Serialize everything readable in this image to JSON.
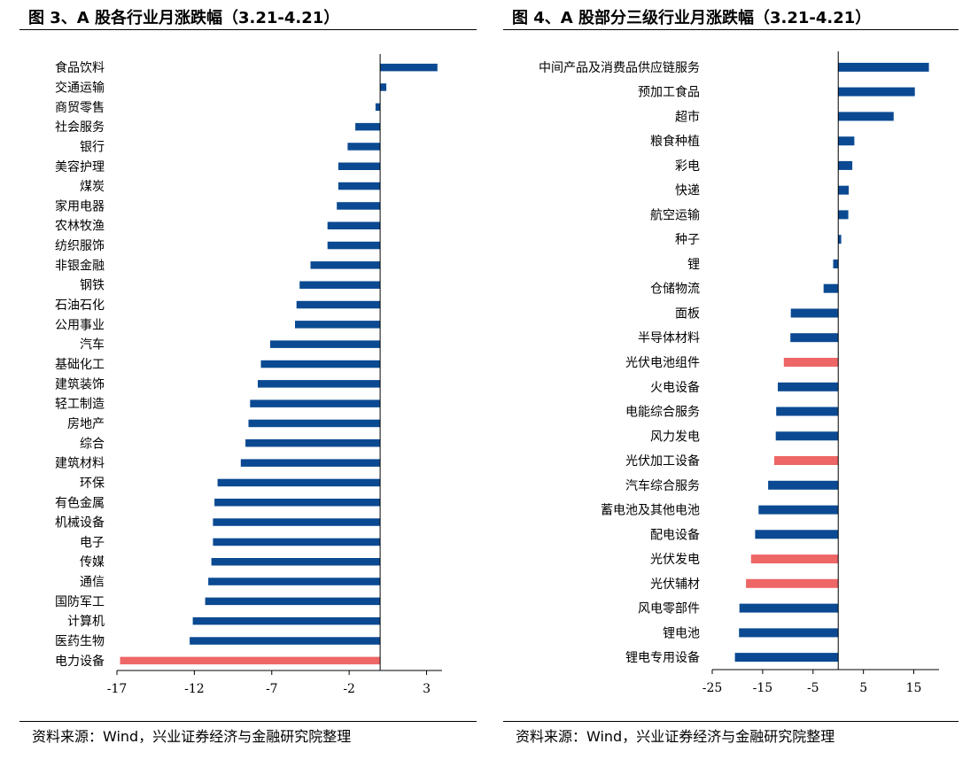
{
  "panels": [
    {
      "title": "图 3、A 股各行业月涨跌幅（3.21-4.21）",
      "source": "资料来源：Wind，兴业证券经济与金融研究院整理",
      "chart_data": {
        "type": "bar",
        "orientation": "horizontal",
        "categories": [
          "食品饮料",
          "交通运输",
          "商贸零售",
          "社会服务",
          "银行",
          "美容护理",
          "煤炭",
          "家用电器",
          "农林牧渔",
          "纺织服饰",
          "非银金融",
          "钢铁",
          "石油石化",
          "公用事业",
          "汽车",
          "基础化工",
          "建筑装饰",
          "轻工制造",
          "房地产",
          "综合",
          "建筑材料",
          "环保",
          "有色金属",
          "机械设备",
          "电子",
          "传媒",
          "通信",
          "国防军工",
          "计算机",
          "医药生物",
          "电力设备"
        ],
        "values": [
          3.7,
          0.4,
          -0.3,
          -1.6,
          -2.1,
          -2.7,
          -2.7,
          -2.8,
          -3.4,
          -3.4,
          -4.5,
          -5.2,
          -5.4,
          -5.5,
          -7.1,
          -7.7,
          -7.9,
          -8.4,
          -8.5,
          -8.7,
          -9.0,
          -10.5,
          -10.7,
          -10.8,
          -10.8,
          -10.9,
          -11.1,
          -11.3,
          -12.1,
          -12.3,
          -16.8
        ],
        "highlight": [
          false,
          false,
          false,
          false,
          false,
          false,
          false,
          false,
          false,
          false,
          false,
          false,
          false,
          false,
          false,
          false,
          false,
          false,
          false,
          false,
          false,
          false,
          false,
          false,
          false,
          false,
          false,
          false,
          false,
          false,
          true
        ],
        "xlim": [
          -17,
          4
        ],
        "xticks": [
          -17,
          -12,
          -7,
          -2,
          3
        ],
        "colors": {
          "bar": "#0b4a92",
          "highlight": "#ee6666"
        }
      }
    },
    {
      "title": "图 4、A 股部分三级行业月涨跌幅（3.21-4.21）",
      "source": "资料来源：Wind，兴业证券经济与金融研究院整理",
      "chart_data": {
        "type": "bar",
        "orientation": "horizontal",
        "categories": [
          "中间产品及消费品供应链服务",
          "预加工食品",
          "超市",
          "粮食种植",
          "彩电",
          "快递",
          "航空运输",
          "种子",
          "锂",
          "仓储物流",
          "面板",
          "半导体材料",
          "光伏电池组件",
          "火电设备",
          "电能综合服务",
          "风力发电",
          "光伏加工设备",
          "汽车综合服务",
          "蓄电池及其他电池",
          "配电设备",
          "光伏发电",
          "光伏辅材",
          "风电零部件",
          "锂电池",
          "锂电专用设备"
        ],
        "values": [
          18.0,
          15.2,
          11.0,
          3.2,
          2.8,
          2.1,
          2.0,
          0.6,
          -1.0,
          -2.9,
          -9.4,
          -9.5,
          -10.8,
          -12.0,
          -12.3,
          -12.4,
          -12.7,
          -13.9,
          -15.8,
          -16.5,
          -17.3,
          -18.3,
          -19.6,
          -19.7,
          -20.5
        ],
        "highlight": [
          false,
          false,
          false,
          false,
          false,
          false,
          false,
          false,
          false,
          false,
          false,
          false,
          true,
          false,
          false,
          false,
          true,
          false,
          false,
          false,
          true,
          true,
          false,
          false,
          false
        ],
        "xlim": [
          -25,
          20
        ],
        "xticks": [
          -25,
          -15,
          -5,
          5,
          15
        ],
        "colors": {
          "bar": "#0b4a92",
          "highlight": "#ee6666"
        }
      }
    }
  ]
}
